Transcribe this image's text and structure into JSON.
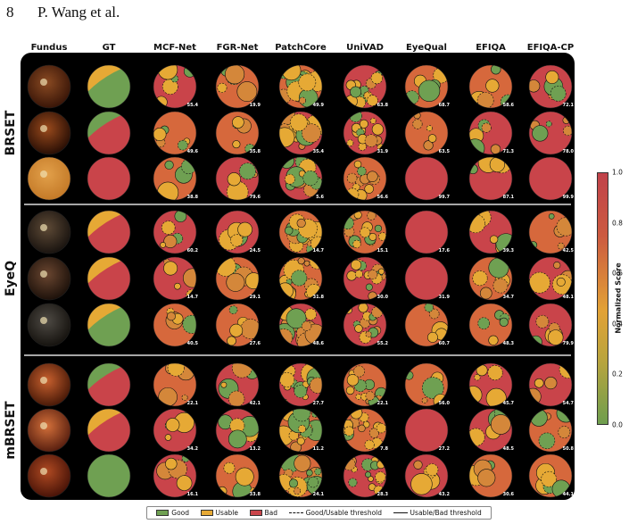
{
  "header": {
    "page_number": "8",
    "authors": "P. Wang et al."
  },
  "columns": [
    "Fundus",
    "GT",
    "MCF-Net",
    "FGR-Net",
    "PatchCore",
    "UniVAD",
    "EyeQual",
    "EFIQA",
    "EFIQA-CP"
  ],
  "groups": [
    "BRSET",
    "EyeQ",
    "mBRSET"
  ],
  "score_rows": [
    {
      "group": "BRSET",
      "scores": [
        "55.4",
        "19.9",
        "49.9",
        "63.8",
        "68.7",
        "58.6",
        "72.1"
      ]
    },
    {
      "group": "BRSET",
      "scores": [
        "49.6",
        "35.8",
        "35.4",
        "31.9",
        "63.5",
        "71.3",
        "78.0"
      ]
    },
    {
      "group": "BRSET",
      "scores": [
        "38.8",
        "79.6",
        "5.6",
        "56.6",
        "99.7",
        "87.1",
        "99.9"
      ]
    },
    {
      "group": "EyeQ",
      "scores": [
        "60.2",
        "24.5",
        "14.7",
        "15.1",
        "17.6",
        "39.3",
        "42.5"
      ]
    },
    {
      "group": "EyeQ",
      "scores": [
        "14.7",
        "29.1",
        "31.8",
        "30.0",
        "31.9",
        "34.7",
        "48.1"
      ]
    },
    {
      "group": "EyeQ",
      "scores": [
        "40.5",
        "27.6",
        "48.6",
        "55.2",
        "60.7",
        "48.3",
        "79.9"
      ]
    },
    {
      "group": "mBRSET",
      "scores": [
        "22.1",
        "42.1",
        "27.7",
        "22.1",
        "56.0",
        "45.7",
        "54.7"
      ]
    },
    {
      "group": "mBRSET",
      "scores": [
        "34.2",
        "13.2",
        "11.2",
        "7.8",
        "27.2",
        "48.5",
        "50.8"
      ]
    },
    {
      "group": "mBRSET",
      "scores": [
        "16.1",
        "33.8",
        "24.1",
        "28.3",
        "43.2",
        "30.6",
        "44.1"
      ]
    }
  ],
  "colorbar": {
    "title": "Normalized Score",
    "ticks": [
      "1.0",
      "0.8",
      "0.6",
      "0.4",
      "0.2",
      "0.0"
    ]
  },
  "legend": {
    "good": "Good",
    "usable": "Usable",
    "bad": "Bad",
    "good_usable": "Good/Usable threshold",
    "usable_bad": "Usable/Bad threshold"
  },
  "colors": {
    "good": "#6fa052",
    "usable": "#e6a935",
    "bad": "#c9444a",
    "panel": "#000000"
  }
}
